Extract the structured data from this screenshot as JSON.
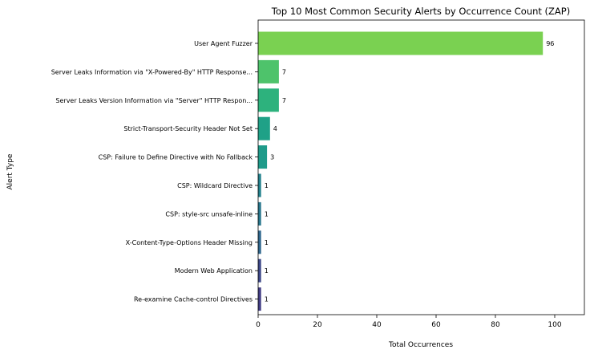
{
  "chart_data": {
    "type": "bar",
    "orientation": "horizontal",
    "title": "Top 10 Most Common Security Alerts by Occurrence Count (ZAP)",
    "xlabel": "Total Occurrences",
    "ylabel": "Alert Type",
    "xlim": [
      0,
      110
    ],
    "xticks": [
      0,
      20,
      40,
      60,
      80,
      100
    ],
    "grid": false,
    "categories": [
      "User Agent Fuzzer",
      "Server Leaks Information via \"X-Powered-By\" HTTP Response...",
      "Server Leaks Version Information via \"Server\" HTTP Respon...",
      "Strict-Transport-Security Header Not Set",
      "CSP: Failure to Define Directive with No Fallback",
      "CSP: Wildcard Directive",
      "CSP: style-src unsafe-inline",
      "X-Content-Type-Options Header Missing",
      "Modern Web Application",
      "Re-examine Cache-control Directives"
    ],
    "values": [
      96,
      7,
      7,
      4,
      3,
      1,
      1,
      1,
      1,
      1
    ],
    "colors": [
      "#7ad151",
      "#4ec36b",
      "#2db27d",
      "#1fa187",
      "#1e9b8a",
      "#25838e",
      "#2a788e",
      "#31688e",
      "#3e4989",
      "#433e85"
    ]
  }
}
